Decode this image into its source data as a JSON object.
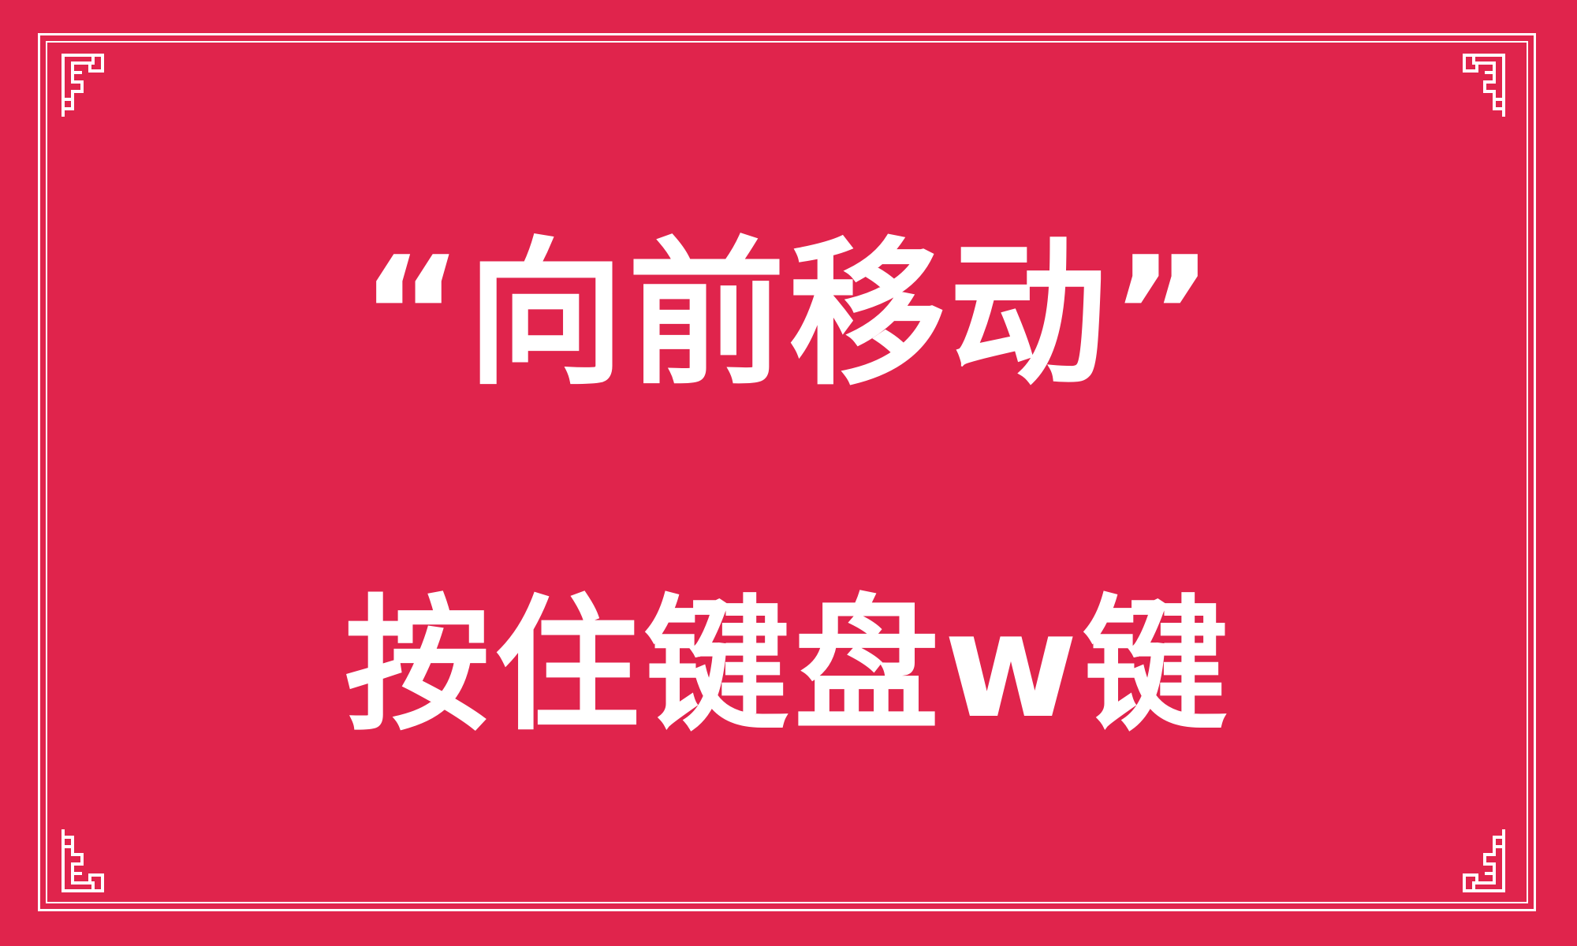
{
  "banner": {
    "title": "“向前移动”",
    "instruction": "按住键盘w键"
  },
  "colors": {
    "background": "#e0244c",
    "text": "#ffffff",
    "border": "#ffffff"
  },
  "decorations": {
    "corner_icon": "chinese-fret-corner-icon"
  }
}
